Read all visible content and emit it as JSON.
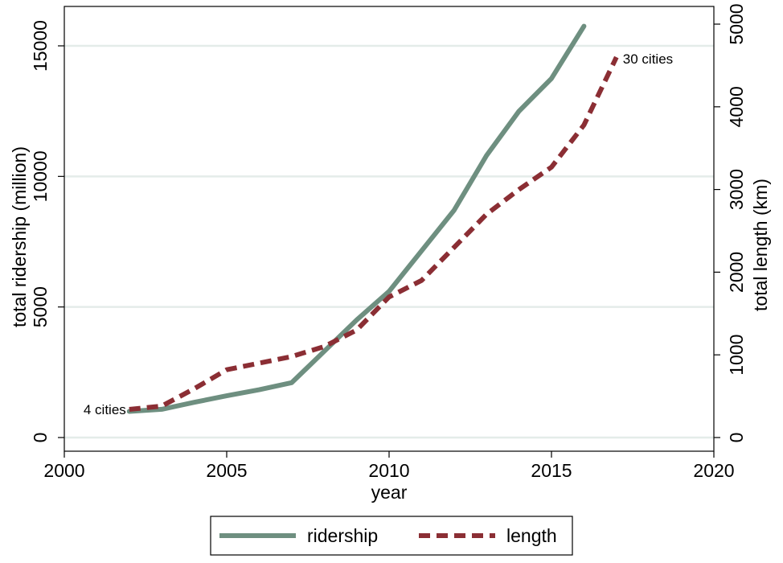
{
  "chart_data": {
    "type": "line",
    "title": "",
    "xlabel": "year",
    "ylabel_left": "total ridership (million)",
    "ylabel_right": "total length (km)",
    "xlim": [
      2000,
      2020
    ],
    "ylim_left": [
      0,
      15000
    ],
    "ylim_right": [
      0,
      5000
    ],
    "x_ticks": [
      "2000",
      "2005",
      "2010",
      "2015",
      "2020"
    ],
    "y_left_ticks": [
      "0",
      "5000",
      "10000",
      "15000"
    ],
    "y_right_ticks": [
      "0",
      "1000",
      "2000",
      "3000",
      "4000",
      "5000"
    ],
    "grid": true,
    "legend_position": "bottom",
    "series": [
      {
        "name": "ridership",
        "axis": "left",
        "color": "#6e8f80",
        "style": "solid",
        "x": [
          2002,
          2003,
          2004,
          2005,
          2006,
          2007,
          2008,
          2009,
          2010,
          2011,
          2012,
          2013,
          2014,
          2015,
          2016
        ],
        "values": [
          1000,
          1080,
          1350,
          1600,
          1830,
          2100,
          3300,
          4500,
          5600,
          7150,
          8700,
          10800,
          12500,
          13750,
          15750
        ]
      },
      {
        "name": "length",
        "axis": "right",
        "color": "#8b2e34",
        "style": "dashed",
        "x": [
          2002,
          2003,
          2004,
          2005,
          2006,
          2007,
          2008,
          2009,
          2010,
          2011,
          2012,
          2013,
          2014,
          2015,
          2016,
          2017
        ],
        "values": [
          340,
          380,
          590,
          820,
          900,
          980,
          1100,
          1300,
          1700,
          1900,
          2300,
          2700,
          3000,
          3270,
          3780,
          4600
        ]
      }
    ],
    "annotations": [
      {
        "text": "4 cities",
        "x": 2002,
        "y_right": 340
      },
      {
        "text": "30 cities",
        "x": 2017,
        "y_right": 4600
      }
    ]
  }
}
